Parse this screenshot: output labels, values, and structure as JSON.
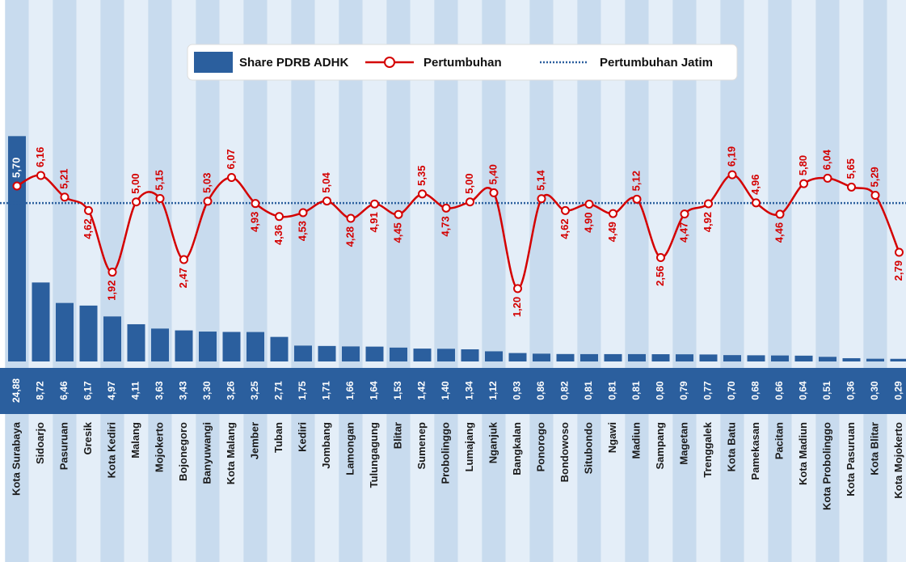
{
  "chart_data": {
    "type": "bar",
    "categories": [
      "Kota Surabaya",
      "Sidoarjo",
      "Pasuruan",
      "Gresik",
      "Kota Kediri",
      "Malang",
      "Mojokerto",
      "Bojonegoro",
      "Banyuwangi",
      "Kota Malang",
      "Jember",
      "Tuban",
      "Kediri",
      "Jombang",
      "Lamongan",
      "Tulungagung",
      "Blitar",
      "Sumenep",
      "Probolinggo",
      "Lumajang",
      "Nganjuk",
      "Bangkalan",
      "Ponorogo",
      "Bondowoso",
      "Situbondo",
      "Ngawi",
      "Madiun",
      "Sampang",
      "Magetan",
      "Trenggalek",
      "Kota Batu",
      "Pamekasan",
      "Pacitan",
      "Kota Madiun",
      "Kota Probolinggo",
      "Kota Pasuruan",
      "Kota Blitar",
      "Kota Mojokerto"
    ],
    "series": [
      {
        "name": "Share PDRB ADHK",
        "type": "bar",
        "color": "#2b5f9e",
        "values": [
          24.88,
          8.72,
          6.46,
          6.17,
          4.97,
          4.11,
          3.63,
          3.43,
          3.3,
          3.26,
          3.25,
          2.71,
          1.75,
          1.71,
          1.66,
          1.64,
          1.53,
          1.42,
          1.4,
          1.34,
          1.12,
          0.93,
          0.86,
          0.82,
          0.81,
          0.81,
          0.81,
          0.8,
          0.79,
          0.77,
          0.7,
          0.68,
          0.66,
          0.64,
          0.51,
          0.36,
          0.3,
          0.29
        ],
        "value_labels": [
          "24,88",
          "8,72",
          "6,46",
          "6,17",
          "4,97",
          "4,11",
          "3,63",
          "3,43",
          "3,30",
          "3,26",
          "3,25",
          "2,71",
          "1,75",
          "1,71",
          "1,66",
          "1,64",
          "1,53",
          "1,42",
          "1,40",
          "1,34",
          "1,12",
          "0,93",
          "0,86",
          "0,82",
          "0,81",
          "0,81",
          "0,81",
          "0,80",
          "0,79",
          "0,77",
          "0,70",
          "0,68",
          "0,66",
          "0,64",
          "0,51",
          "0,36",
          "0,30",
          "0,29"
        ]
      },
      {
        "name": "Pertumbuhan",
        "type": "line",
        "color": "#d40000",
        "values": [
          5.7,
          6.16,
          5.21,
          4.62,
          1.92,
          5.0,
          5.15,
          2.47,
          5.03,
          6.07,
          4.93,
          4.36,
          4.53,
          5.04,
          4.28,
          4.91,
          4.45,
          5.35,
          4.73,
          5.0,
          5.4,
          1.2,
          5.14,
          4.62,
          4.9,
          4.49,
          5.12,
          2.56,
          4.47,
          4.92,
          6.19,
          4.96,
          4.46,
          5.8,
          6.04,
          5.65,
          5.29,
          2.79
        ],
        "value_labels": [
          "5,70",
          "6,16",
          "5,21",
          "4,62",
          "1,92",
          "5,00",
          "5,15",
          "2,47",
          "5,03",
          "6,07",
          "4,93",
          "4,36",
          "4,53",
          "5,04",
          "4,28",
          "4,91",
          "4,45",
          "5,35",
          "4,73",
          "5,00",
          "5,40",
          "1,20",
          "5,14",
          "4,62",
          "4,90",
          "4,49",
          "5,12",
          "2,56",
          "4,47",
          "4,92",
          "6,19",
          "4,96",
          "4,46",
          "5,80",
          "6,04",
          "5,65",
          "5,29",
          "2,79"
        ]
      }
    ],
    "reference": {
      "name": "Pertumbuhan Jatim",
      "value": 4.95,
      "color": "#2b5f9e"
    }
  }
}
